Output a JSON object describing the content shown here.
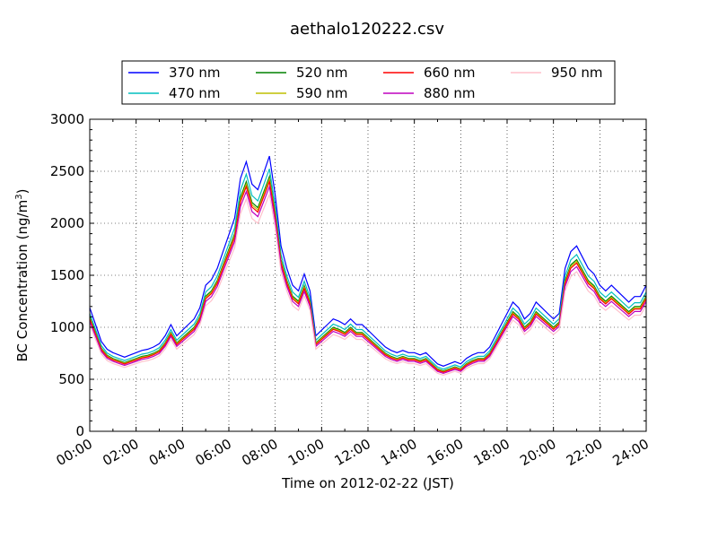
{
  "chart_data": {
    "type": "line",
    "title": "aethalo120222.csv",
    "xlabel": "Time on 2012-02-22 (JST)",
    "ylabel_main": "BC Concentration (ng/m",
    "ylabel_sup": "3",
    "ylabel_tail": ")",
    "xlim": [
      0,
      24
    ],
    "ylim": [
      0,
      3000
    ],
    "grid": true,
    "legend_placement": "top",
    "x_ticks": [
      {
        "v": 0,
        "label": "00:00"
      },
      {
        "v": 2,
        "label": "02:00"
      },
      {
        "v": 4,
        "label": "04:00"
      },
      {
        "v": 6,
        "label": "06:00"
      },
      {
        "v": 8,
        "label": "08:00"
      },
      {
        "v": 10,
        "label": "10:00"
      },
      {
        "v": 12,
        "label": "12:00"
      },
      {
        "v": 14,
        "label": "14:00"
      },
      {
        "v": 16,
        "label": "16:00"
      },
      {
        "v": 18,
        "label": "18:00"
      },
      {
        "v": 20,
        "label": "20:00"
      },
      {
        "v": 22,
        "label": "22:00"
      },
      {
        "v": 24,
        "label": "24:00"
      }
    ],
    "y_ticks": [
      {
        "v": 0,
        "label": "0"
      },
      {
        "v": 500,
        "label": "500"
      },
      {
        "v": 1000,
        "label": "1000"
      },
      {
        "v": 1500,
        "label": "1500"
      },
      {
        "v": 2000,
        "label": "2000"
      },
      {
        "v": 2500,
        "label": "2500"
      },
      {
        "v": 3000,
        "label": "3000"
      }
    ],
    "series": [
      {
        "name": "370 nm",
        "color": "#0000ff",
        "factor": 1.08
      },
      {
        "name": "470 nm",
        "color": "#00bfbf",
        "factor": 1.03
      },
      {
        "name": "520 nm",
        "color": "#008000",
        "factor": 1.0
      },
      {
        "name": "590 nm",
        "color": "#bfbf00",
        "factor": 0.99
      },
      {
        "name": "660 nm",
        "color": "#ff0000",
        "factor": 0.98
      },
      {
        "name": "880 nm",
        "color": "#bf00bf",
        "factor": 0.96
      },
      {
        "name": "950 nm",
        "color": "#ffc0cb",
        "factor": 0.93
      }
    ],
    "x": [
      0,
      0.25,
      0.5,
      0.75,
      1.0,
      1.25,
      1.5,
      1.75,
      2.0,
      2.25,
      2.5,
      2.75,
      3.0,
      3.25,
      3.5,
      3.75,
      4.0,
      4.25,
      4.5,
      4.75,
      5.0,
      5.25,
      5.5,
      5.75,
      6.0,
      6.25,
      6.5,
      6.75,
      7.0,
      7.25,
      7.5,
      7.75,
      8.0,
      8.25,
      8.5,
      8.75,
      9.0,
      9.25,
      9.5,
      9.75,
      10.0,
      10.25,
      10.5,
      10.75,
      11.0,
      11.25,
      11.5,
      11.75,
      12.0,
      12.25,
      12.5,
      12.75,
      13.0,
      13.25,
      13.5,
      13.75,
      14.0,
      14.25,
      14.5,
      14.75,
      15.0,
      15.25,
      15.5,
      15.75,
      16.0,
      16.25,
      16.5,
      16.75,
      17.0,
      17.25,
      17.5,
      17.75,
      18.0,
      18.25,
      18.5,
      18.75,
      19.0,
      19.25,
      19.5,
      19.75,
      20.0,
      20.25,
      20.5,
      20.75,
      21.0,
      21.25,
      21.5,
      21.75,
      22.0,
      22.25,
      22.5,
      22.75,
      23.0,
      23.25,
      23.5,
      23.75,
      24.0
    ],
    "base": [
      1100,
      950,
      800,
      730,
      700,
      680,
      660,
      680,
      700,
      720,
      730,
      750,
      780,
      850,
      950,
      850,
      900,
      950,
      1000,
      1100,
      1300,
      1350,
      1450,
      1600,
      1750,
      1900,
      2250,
      2400,
      2200,
      2150,
      2300,
      2450,
      2100,
      1650,
      1450,
      1300,
      1250,
      1400,
      1250,
      850,
      900,
      950,
      1000,
      980,
      950,
      1000,
      950,
      950,
      900,
      850,
      800,
      750,
      720,
      700,
      720,
      700,
      700,
      680,
      700,
      650,
      600,
      580,
      600,
      620,
      600,
      650,
      680,
      700,
      700,
      750,
      850,
      950,
      1050,
      1150,
      1100,
      1000,
      1050,
      1150,
      1100,
      1050,
      1000,
      1050,
      1450,
      1600,
      1650,
      1550,
      1450,
      1400,
      1300,
      1250,
      1300,
      1250,
      1200,
      1150,
      1200,
      1200,
      1300
    ]
  }
}
